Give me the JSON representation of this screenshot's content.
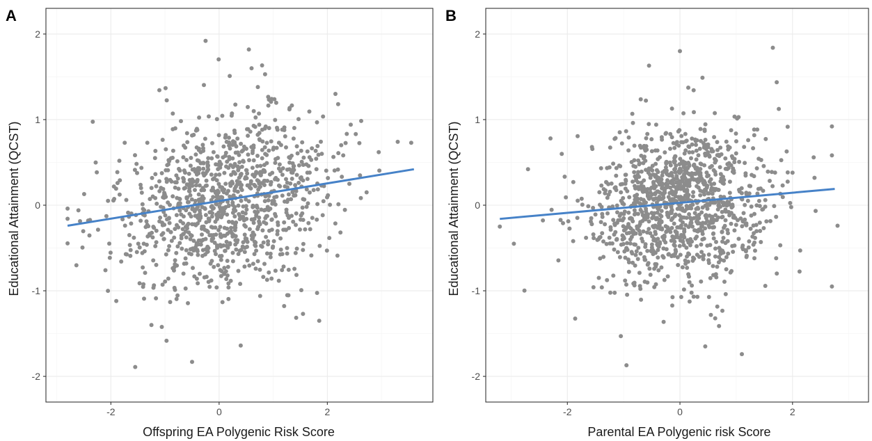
{
  "panels": [
    {
      "letter": "A",
      "ylabel": "Educational Attainment (QCST)",
      "xlabel": "Offspring EA Polygenic Risk Score",
      "x_ticks": [
        -2,
        0,
        2
      ],
      "y_ticks": [
        -2,
        -1,
        0,
        1,
        2
      ]
    },
    {
      "letter": "B",
      "ylabel": "Educational Attainment (QCST)",
      "xlabel": "Parental EA Polygenic risk Score",
      "x_ticks": [
        -2,
        0,
        2
      ],
      "y_ticks": [
        -2,
        -1,
        0,
        1,
        2
      ]
    }
  ],
  "colors": {
    "points": "#8c8c8c",
    "fit_line": "#4682c8",
    "grid": "#ebebeb"
  },
  "chart_data": [
    {
      "type": "scatter",
      "panel": "A",
      "title": "",
      "xlabel": "Offspring EA Polygenic Risk Score",
      "ylabel": "Educational Attainment (QCST)",
      "xlim": [
        -3.2,
        3.95
      ],
      "ylim": [
        -2.3,
        2.3
      ],
      "grid": true,
      "n_points_approx": 1100,
      "x_distribution": {
        "mean": 0.15,
        "sd": 0.95
      },
      "y_distribution": {
        "mean": 0.05,
        "sd": 0.5
      },
      "fit_line": {
        "x": [
          -2.8,
          3.6
        ],
        "y": [
          -0.24,
          0.42
        ]
      },
      "notable_points": [
        [
          -0.25,
          1.92
        ],
        [
          0.55,
          1.82
        ],
        [
          0.6,
          1.6
        ],
        [
          0.85,
          1.53
        ],
        [
          -1.55,
          -1.89
        ],
        [
          -0.5,
          -1.83
        ],
        [
          0.4,
          -1.64
        ],
        [
          1.85,
          -1.35
        ],
        [
          1.55,
          -1.27
        ],
        [
          -1.25,
          -1.4
        ],
        [
          3.55,
          0.73
        ],
        [
          3.3,
          0.74
        ],
        [
          2.95,
          0.62
        ],
        [
          -2.8,
          -0.04
        ],
        [
          -2.6,
          -0.06
        ],
        [
          -2.1,
          -0.76
        ],
        [
          -1.9,
          -1.12
        ],
        [
          1.3,
          1.12
        ],
        [
          2.2,
          1.18
        ],
        [
          2.15,
          1.3
        ]
      ]
    },
    {
      "type": "scatter",
      "panel": "B",
      "title": "",
      "xlabel": "Parental EA Polygenic risk Score",
      "ylabel": "Educational Attainment (QCST)",
      "xlim": [
        -3.45,
        3.35
      ],
      "ylim": [
        -2.3,
        2.3
      ],
      "grid": true,
      "n_points_approx": 1200,
      "x_distribution": {
        "mean": 0.0,
        "sd": 0.8
      },
      "y_distribution": {
        "mean": 0.02,
        "sd": 0.45
      },
      "fit_line": {
        "x": [
          -3.2,
          2.75
        ],
        "y": [
          -0.16,
          0.19
        ]
      },
      "notable_points": [
        [
          1.65,
          1.84
        ],
        [
          0.0,
          1.8
        ],
        [
          -0.55,
          1.63
        ],
        [
          0.4,
          1.49
        ],
        [
          -0.95,
          -1.87
        ],
        [
          1.1,
          -1.74
        ],
        [
          0.45,
          -1.65
        ],
        [
          -1.05,
          -1.53
        ],
        [
          -3.2,
          -0.25
        ],
        [
          -2.95,
          -0.45
        ],
        [
          2.7,
          0.92
        ],
        [
          2.7,
          -0.95
        ],
        [
          2.8,
          -0.24
        ],
        [
          -2.7,
          0.42
        ],
        [
          -2.3,
          0.78
        ],
        [
          -2.1,
          0.6
        ]
      ]
    }
  ]
}
